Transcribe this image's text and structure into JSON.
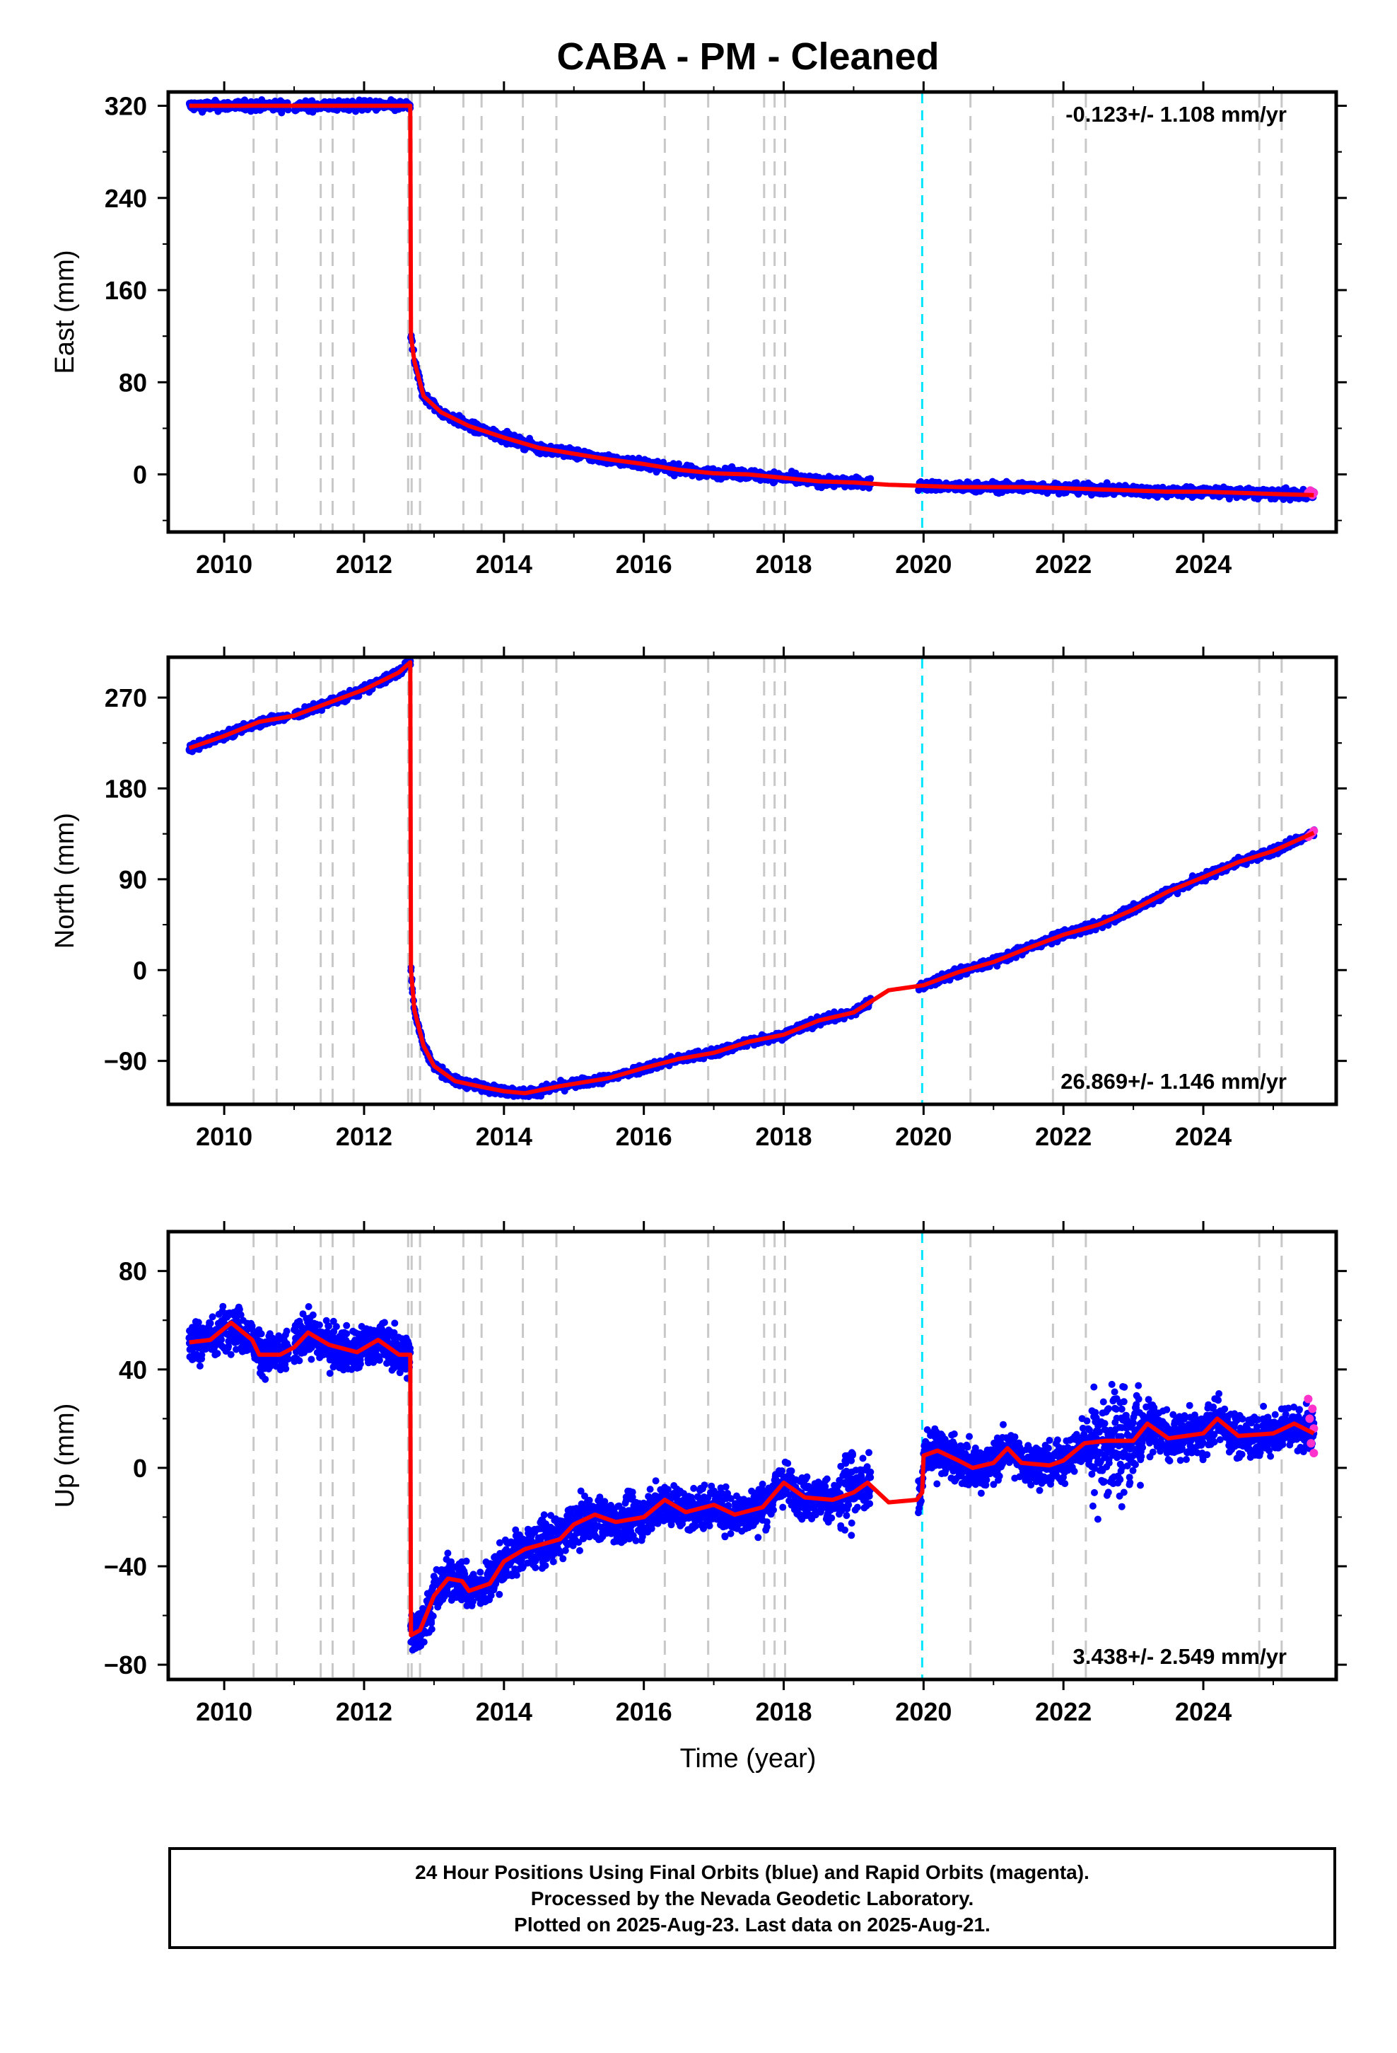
{
  "title": "CABA  - PM - Cleaned",
  "colors": {
    "final_orbits": "#0000ff",
    "rapid_orbits": "#ff33cc",
    "model": "#ff0000",
    "event_lines": "#c8c8c8",
    "reference_line": "#00e5ff"
  },
  "xlabel": "Time (year)",
  "footer": {
    "line1": "24 Hour Positions Using Final Orbits (blue) and Rapid Orbits (magenta).",
    "line2": "Processed by the Nevada Geodetic Laboratory.",
    "line3": "Plotted on 2025-Aug-23. Last data on 2025-Aug-21."
  },
  "chart_data": [
    {
      "type": "scatter",
      "id": "east",
      "ylabel": "East (mm)",
      "rate_label": "-0.123+/- 1.108 mm/yr",
      "rate_position": "top-right",
      "xlim": [
        2009.2,
        2025.9
      ],
      "ylim": [
        -50,
        332
      ],
      "xticks": [
        2010,
        2012,
        2014,
        2016,
        2018,
        2020,
        2022,
        2024
      ],
      "yticks": [
        0,
        80,
        160,
        240,
        320
      ],
      "event_lines": [
        2010.42,
        2010.75,
        2011.38,
        2011.55,
        2011.85,
        2012.63,
        2012.68,
        2012.8,
        2013.42,
        2013.68,
        2014.27,
        2014.75,
        2016.3,
        2016.92,
        2017.72,
        2017.87,
        2018.02,
        2020.67,
        2021.85,
        2022.32,
        2024.8,
        2025.12
      ],
      "reference_line": 2019.98,
      "model": [
        [
          2009.5,
          320
        ],
        [
          2012.0,
          320
        ],
        [
          2012.66,
          320
        ],
        [
          2012.67,
          120
        ],
        [
          2012.72,
          98
        ],
        [
          2012.85,
          68
        ],
        [
          2013.1,
          54
        ],
        [
          2013.5,
          42
        ],
        [
          2014.0,
          32
        ],
        [
          2014.5,
          23
        ],
        [
          2015.0,
          18
        ],
        [
          2015.5,
          13
        ],
        [
          2016.0,
          9
        ],
        [
          2016.5,
          4
        ],
        [
          2017.0,
          1
        ],
        [
          2017.5,
          0
        ],
        [
          2018.0,
          -3
        ],
        [
          2018.5,
          -6
        ],
        [
          2019.0,
          -7
        ],
        [
          2019.5,
          -9
        ],
        [
          2020.0,
          -10
        ],
        [
          2020.5,
          -11
        ],
        [
          2021.0,
          -11
        ],
        [
          2021.5,
          -11
        ],
        [
          2022.0,
          -12
        ],
        [
          2022.5,
          -13
        ],
        [
          2023.0,
          -14
        ],
        [
          2023.5,
          -15
        ],
        [
          2024.0,
          -15
        ],
        [
          2024.5,
          -16
        ],
        [
          2025.0,
          -17
        ],
        [
          2025.58,
          -18
        ]
      ],
      "rapid_points": [
        [
          2025.5,
          -16
        ],
        [
          2025.53,
          -14
        ],
        [
          2025.56,
          -18
        ],
        [
          2025.58,
          -16
        ]
      ]
    },
    {
      "type": "scatter",
      "id": "north",
      "ylabel": "North (mm)",
      "rate_label": "26.869+/- 1.146 mm/yr",
      "rate_position": "bottom-right",
      "xlim": [
        2009.2,
        2025.9
      ],
      "ylim": [
        -133,
        310
      ],
      "xticks": [
        2010,
        2012,
        2014,
        2016,
        2018,
        2020,
        2022,
        2024
      ],
      "yticks": [
        -90,
        0,
        90,
        180,
        270
      ],
      "event_lines": [
        2010.42,
        2010.75,
        2011.38,
        2011.55,
        2011.85,
        2012.63,
        2012.68,
        2012.8,
        2013.42,
        2013.68,
        2014.27,
        2014.75,
        2016.3,
        2016.92,
        2017.72,
        2017.87,
        2018.02,
        2020.67,
        2021.85,
        2022.32,
        2024.8,
        2025.12
      ],
      "reference_line": 2019.98,
      "model": [
        [
          2009.5,
          220
        ],
        [
          2010.0,
          232
        ],
        [
          2010.5,
          246
        ],
        [
          2011.0,
          252
        ],
        [
          2011.5,
          265
        ],
        [
          2012.0,
          278
        ],
        [
          2012.5,
          295
        ],
        [
          2012.66,
          305
        ],
        [
          2012.67,
          0
        ],
        [
          2012.72,
          -40
        ],
        [
          2012.85,
          -75
        ],
        [
          2013.0,
          -95
        ],
        [
          2013.3,
          -110
        ],
        [
          2013.7,
          -116
        ],
        [
          2014.0,
          -120
        ],
        [
          2014.3,
          -122
        ],
        [
          2014.8,
          -115
        ],
        [
          2015.5,
          -107
        ],
        [
          2016.0,
          -97
        ],
        [
          2016.5,
          -88
        ],
        [
          2017.0,
          -82
        ],
        [
          2017.5,
          -71
        ],
        [
          2018.0,
          -64
        ],
        [
          2018.5,
          -50
        ],
        [
          2019.0,
          -42
        ],
        [
          2019.5,
          -20
        ],
        [
          2020.0,
          -15
        ],
        [
          2020.5,
          -2
        ],
        [
          2021.0,
          8
        ],
        [
          2021.5,
          22
        ],
        [
          2022.0,
          35
        ],
        [
          2022.5,
          45
        ],
        [
          2023.0,
          60
        ],
        [
          2023.5,
          78
        ],
        [
          2024.0,
          92
        ],
        [
          2024.5,
          107
        ],
        [
          2025.0,
          118
        ],
        [
          2025.58,
          136
        ]
      ],
      "rapid_points": [
        [
          2025.5,
          132
        ],
        [
          2025.53,
          134
        ],
        [
          2025.56,
          136
        ],
        [
          2025.58,
          138
        ]
      ]
    },
    {
      "type": "scatter",
      "id": "up",
      "ylabel": "Up (mm)",
      "rate_label": "3.438+/- 2.549 mm/yr",
      "rate_position": "bottom-right",
      "xlim": [
        2009.2,
        2025.9
      ],
      "ylim": [
        -86,
        96
      ],
      "xticks": [
        2010,
        2012,
        2014,
        2016,
        2018,
        2020,
        2022,
        2024
      ],
      "yticks": [
        -80,
        -40,
        0,
        40,
        80
      ],
      "event_lines": [
        2010.42,
        2010.75,
        2011.38,
        2011.55,
        2011.85,
        2012.63,
        2012.68,
        2012.8,
        2013.42,
        2013.68,
        2014.27,
        2014.75,
        2016.3,
        2016.92,
        2017.72,
        2017.87,
        2018.02,
        2020.67,
        2021.85,
        2022.32,
        2024.8,
        2025.12
      ],
      "reference_line": 2019.98,
      "model": [
        [
          2009.5,
          51
        ],
        [
          2009.8,
          52
        ],
        [
          2010.1,
          59
        ],
        [
          2010.4,
          52
        ],
        [
          2010.5,
          46
        ],
        [
          2010.8,
          46
        ],
        [
          2011.0,
          49
        ],
        [
          2011.2,
          55
        ],
        [
          2011.5,
          50
        ],
        [
          2011.9,
          47
        ],
        [
          2012.2,
          52
        ],
        [
          2012.5,
          46
        ],
        [
          2012.66,
          46
        ],
        [
          2012.67,
          -68
        ],
        [
          2012.8,
          -66
        ],
        [
          2013.0,
          -52
        ],
        [
          2013.2,
          -45
        ],
        [
          2013.4,
          -46
        ],
        [
          2013.5,
          -50
        ],
        [
          2013.8,
          -47
        ],
        [
          2014.0,
          -38
        ],
        [
          2014.3,
          -33
        ],
        [
          2014.8,
          -29
        ],
        [
          2015.0,
          -23
        ],
        [
          2015.3,
          -19
        ],
        [
          2015.6,
          -22
        ],
        [
          2016.0,
          -20
        ],
        [
          2016.3,
          -13
        ],
        [
          2016.6,
          -18
        ],
        [
          2017.0,
          -15
        ],
        [
          2017.3,
          -19
        ],
        [
          2017.7,
          -16
        ],
        [
          2018.0,
          -6
        ],
        [
          2018.3,
          -12
        ],
        [
          2018.7,
          -13
        ],
        [
          2019.0,
          -10
        ],
        [
          2019.2,
          -6
        ],
        [
          2019.5,
          -14
        ],
        [
          2019.9,
          -13
        ],
        [
          2019.98,
          -10
        ],
        [
          2020.0,
          5
        ],
        [
          2020.2,
          7
        ],
        [
          2020.5,
          3
        ],
        [
          2020.7,
          0
        ],
        [
          2021.0,
          2
        ],
        [
          2021.2,
          8
        ],
        [
          2021.4,
          2
        ],
        [
          2021.8,
          1
        ],
        [
          2022.0,
          3
        ],
        [
          2022.3,
          10
        ],
        [
          2022.6,
          11
        ],
        [
          2023.0,
          11
        ],
        [
          2023.2,
          18
        ],
        [
          2023.5,
          12
        ],
        [
          2024.0,
          14
        ],
        [
          2024.2,
          20
        ],
        [
          2024.5,
          13
        ],
        [
          2025.0,
          14
        ],
        [
          2025.3,
          18
        ],
        [
          2025.58,
          14
        ]
      ],
      "rapid_points": [
        [
          2025.5,
          28
        ],
        [
          2025.52,
          20
        ],
        [
          2025.54,
          10
        ],
        [
          2025.56,
          24
        ],
        [
          2025.58,
          6
        ],
        [
          2025.58,
          16
        ]
      ]
    }
  ]
}
